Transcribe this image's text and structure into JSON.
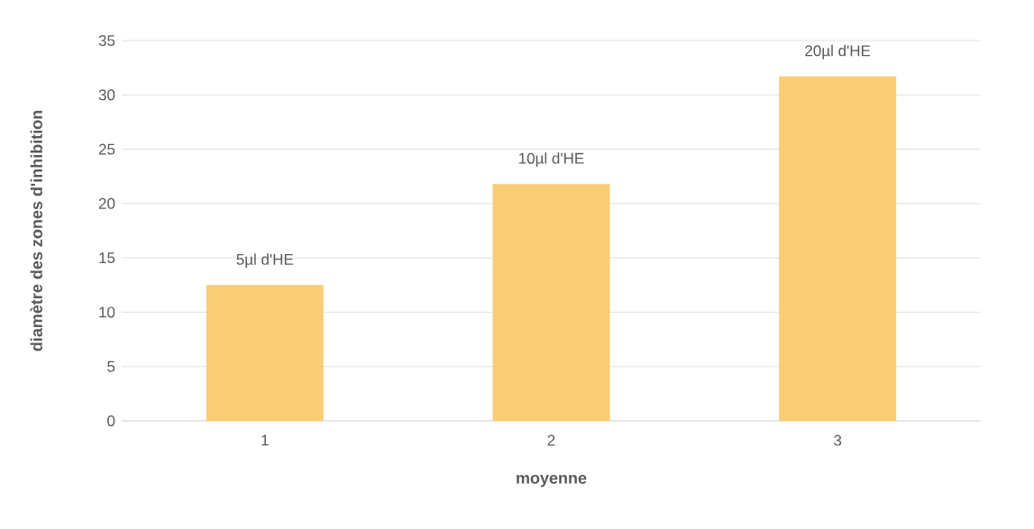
{
  "chart_data": {
    "type": "bar",
    "xlabel": "moyenne",
    "ylabel": "diamètre des zones d'inhibition",
    "categories": [
      "1",
      "2",
      "3"
    ],
    "values": [
      12.5,
      21.8,
      31.7
    ],
    "color": "#f9cc76",
    "ylim": [
      0,
      35
    ],
    "yticks": [
      0,
      5,
      10,
      15,
      20,
      25,
      30,
      35
    ],
    "grid": "y",
    "annotations": [
      {
        "text": "5µl d'HE",
        "x": "1",
        "y": 12.5
      },
      {
        "text": "10µl d'HE",
        "x": "2",
        "y": 21.8
      },
      {
        "text": "20µl d'HE",
        "x": "3",
        "y": 31.7
      }
    ]
  }
}
